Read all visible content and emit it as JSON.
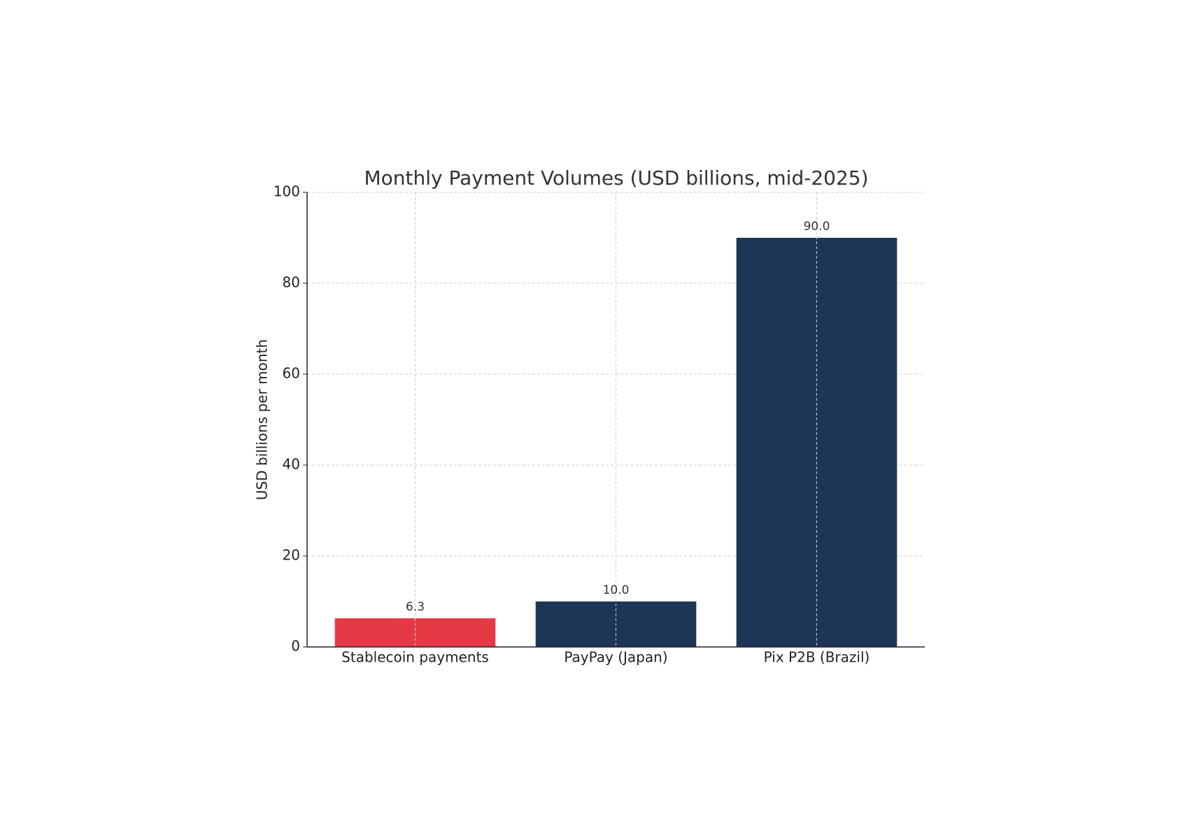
{
  "chart_data": {
    "type": "bar",
    "title": "Monthly Payment Volumes (USD billions, mid-2025)",
    "y_label": "USD billions per month",
    "categories": [
      "Stablecoin payments",
      "PayPay (Japan)",
      "Pix P2B (Brazil)"
    ],
    "values": [
      6.3,
      10,
      90
    ],
    "value_labels": [
      "6.3",
      "10.0",
      "90.0"
    ],
    "colors": [
      "#e63946",
      "#1d3557",
      "#1d3557"
    ],
    "ylim": [
      0,
      100
    ],
    "yticks": [
      0,
      20,
      40,
      60,
      80,
      100
    ],
    "grid": true
  }
}
